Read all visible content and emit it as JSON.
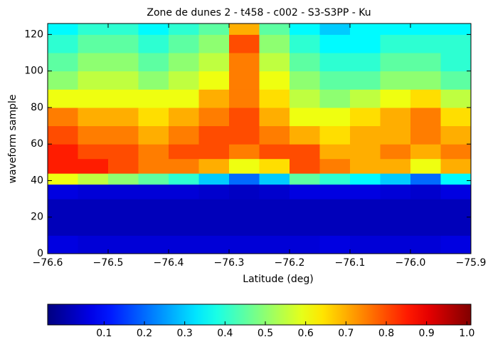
{
  "chart_data": {
    "type": "heatmap",
    "title": "Zone de dunes 2 - t458 - c002 - S3-S3PP - Ku",
    "x_label": "Latitude (deg)",
    "y_label": "waveform sample",
    "xlim": [
      -76.6,
      -75.9
    ],
    "ylim": [
      0,
      126
    ],
    "xticks": [
      {
        "value": -76.6,
        "label": "−76.6"
      },
      {
        "value": -76.5,
        "label": "−76.5"
      },
      {
        "value": -76.4,
        "label": "−76.4"
      },
      {
        "value": -76.3,
        "label": "−76.3"
      },
      {
        "value": -76.2,
        "label": "−76.2"
      },
      {
        "value": -76.1,
        "label": "−76.1"
      },
      {
        "value": -76.0,
        "label": "−76.0"
      },
      {
        "value": -75.9,
        "label": "−75.9"
      }
    ],
    "yticks": [
      0,
      20,
      40,
      60,
      80,
      100,
      120
    ],
    "xbins": [
      -76.6,
      -76.55,
      -76.5,
      -76.45,
      -76.4,
      -76.35,
      -76.3,
      -76.25,
      -76.2,
      -76.15,
      -76.1,
      -76.05,
      -76.0,
      -75.95,
      -75.9
    ],
    "ybins": [
      0,
      10,
      20,
      30,
      38,
      44,
      52,
      60,
      70,
      80,
      90,
      100,
      110,
      120,
      126
    ],
    "colormap": "jet",
    "clim": [
      -0.04,
      1.01
    ],
    "cticks": [
      0.1,
      0.2,
      0.3,
      0.4,
      0.5,
      0.6,
      0.7,
      0.8,
      0.9,
      {
        "value": 1.0,
        "label": "1.0"
      }
    ],
    "z": [
      [
        0.06,
        0.05,
        0.05,
        0.05,
        0.05,
        0.05,
        0.05,
        0.05,
        0.05,
        0.06,
        0.05,
        0.05,
        0.05,
        0.06
      ],
      [
        0.02,
        0.02,
        0.02,
        0.02,
        0.02,
        0.02,
        0.02,
        0.02,
        0.02,
        0.02,
        0.02,
        0.02,
        0.02,
        0.02
      ],
      [
        0.02,
        0.02,
        0.02,
        0.02,
        0.02,
        0.02,
        0.02,
        0.02,
        0.02,
        0.02,
        0.02,
        0.02,
        0.02,
        0.02
      ],
      [
        0.06,
        0.05,
        0.05,
        0.05,
        0.05,
        0.04,
        0.03,
        0.04,
        0.06,
        0.06,
        0.06,
        0.05,
        0.04,
        0.06
      ],
      [
        0.6,
        0.55,
        0.5,
        0.45,
        0.4,
        0.3,
        0.2,
        0.3,
        0.45,
        0.4,
        0.35,
        0.3,
        0.2,
        0.35
      ],
      [
        0.85,
        0.85,
        0.8,
        0.75,
        0.75,
        0.7,
        0.6,
        0.65,
        0.8,
        0.75,
        0.7,
        0.7,
        0.6,
        0.7
      ],
      [
        0.85,
        0.8,
        0.8,
        0.75,
        0.8,
        0.8,
        0.75,
        0.8,
        0.8,
        0.7,
        0.7,
        0.75,
        0.7,
        0.75
      ],
      [
        0.8,
        0.75,
        0.75,
        0.7,
        0.75,
        0.8,
        0.8,
        0.75,
        0.7,
        0.65,
        0.7,
        0.7,
        0.75,
        0.7
      ],
      [
        0.75,
        0.7,
        0.7,
        0.65,
        0.7,
        0.75,
        0.8,
        0.7,
        0.6,
        0.6,
        0.65,
        0.7,
        0.75,
        0.65
      ],
      [
        0.6,
        0.6,
        0.6,
        0.6,
        0.6,
        0.7,
        0.75,
        0.65,
        0.55,
        0.5,
        0.55,
        0.6,
        0.65,
        0.55
      ],
      [
        0.5,
        0.55,
        0.55,
        0.5,
        0.55,
        0.6,
        0.75,
        0.6,
        0.5,
        0.45,
        0.45,
        0.5,
        0.5,
        0.45
      ],
      [
        0.45,
        0.5,
        0.5,
        0.45,
        0.5,
        0.55,
        0.75,
        0.55,
        0.45,
        0.4,
        0.4,
        0.45,
        0.45,
        0.4
      ],
      [
        0.4,
        0.45,
        0.45,
        0.4,
        0.45,
        0.5,
        0.8,
        0.5,
        0.4,
        0.35,
        0.35,
        0.4,
        0.4,
        0.4
      ],
      [
        0.35,
        0.4,
        0.4,
        0.35,
        0.4,
        0.45,
        0.7,
        0.45,
        0.35,
        0.3,
        0.35,
        0.35,
        0.35,
        0.35
      ]
    ]
  }
}
